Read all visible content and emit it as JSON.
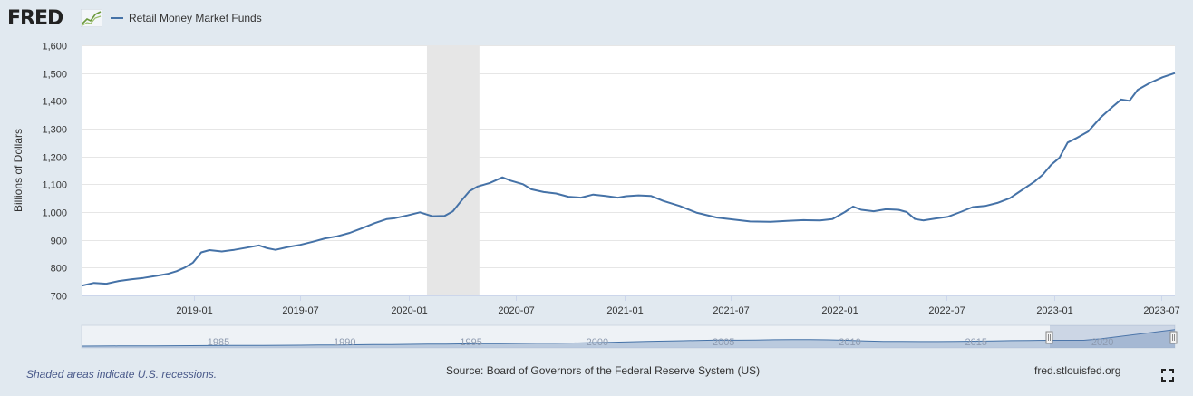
{
  "header": {
    "logo_text": "FRED",
    "legend_label": "Retail Money Market Funds"
  },
  "footer": {
    "recession_note": "Shaded areas indicate U.S. recessions.",
    "source": "Source: Board of Governors of the Federal Reserve System (US)",
    "url": "fred.stlouisfed.org"
  },
  "colors": {
    "series": "#4572a7",
    "recession_shade": "#e6e6e6",
    "background": "#e1e9f0",
    "navigator_fill": "#a8bcd6"
  },
  "icons": [
    "fred-graph-icon",
    "fullscreen-icon"
  ],
  "chart_data": {
    "type": "line",
    "title": "",
    "xlabel": "",
    "ylabel": "Billions of Dollars",
    "ylim": [
      700,
      1600
    ],
    "xlim": [
      "2018-06-25",
      "2023-07-24"
    ],
    "yticks": [
      "700",
      "800",
      "900",
      "1,000",
      "1,100",
      "1,200",
      "1,300",
      "1,400",
      "1,500",
      "1,600"
    ],
    "xticks": [
      {
        "date": "2019-01-01",
        "label": "2019-01"
      },
      {
        "date": "2019-07-01",
        "label": "2019-07"
      },
      {
        "date": "2020-01-01",
        "label": "2020-01"
      },
      {
        "date": "2020-07-01",
        "label": "2020-07"
      },
      {
        "date": "2021-01-01",
        "label": "2021-01"
      },
      {
        "date": "2021-07-01",
        "label": "2021-07"
      },
      {
        "date": "2022-01-01",
        "label": "2022-01"
      },
      {
        "date": "2022-07-01",
        "label": "2022-07"
      },
      {
        "date": "2023-01-01",
        "label": "2023-01"
      },
      {
        "date": "2023-07-01",
        "label": "2023-07"
      }
    ],
    "grid": true,
    "recessions": [
      {
        "start": "2020-02-01",
        "end": "2020-04-30"
      }
    ],
    "navigator": {
      "labels": [
        "1985",
        "1990",
        "1995",
        "2000",
        "2005",
        "2010",
        "2015",
        "2020"
      ]
    },
    "series": [
      {
        "name": "Retail Money Market Funds",
        "points": [
          [
            "2018-06-25",
            735
          ],
          [
            "2018-07-16",
            745
          ],
          [
            "2018-08-06",
            742
          ],
          [
            "2018-08-27",
            752
          ],
          [
            "2018-09-17",
            758
          ],
          [
            "2018-10-08",
            763
          ],
          [
            "2018-10-29",
            770
          ],
          [
            "2018-11-19",
            778
          ],
          [
            "2018-12-03",
            787
          ],
          [
            "2018-12-17",
            800
          ],
          [
            "2018-12-31",
            818
          ],
          [
            "2019-01-14",
            855
          ],
          [
            "2019-01-28",
            863
          ],
          [
            "2019-02-18",
            858
          ],
          [
            "2019-03-11",
            864
          ],
          [
            "2019-04-01",
            872
          ],
          [
            "2019-04-22",
            880
          ],
          [
            "2019-05-06",
            870
          ],
          [
            "2019-05-20",
            864
          ],
          [
            "2019-06-10",
            874
          ],
          [
            "2019-07-01",
            882
          ],
          [
            "2019-07-22",
            893
          ],
          [
            "2019-08-12",
            905
          ],
          [
            "2019-09-02",
            913
          ],
          [
            "2019-09-23",
            925
          ],
          [
            "2019-10-14",
            942
          ],
          [
            "2019-11-04",
            960
          ],
          [
            "2019-11-25",
            975
          ],
          [
            "2019-12-09",
            978
          ],
          [
            "2019-12-30",
            988
          ],
          [
            "2020-01-20",
            999
          ],
          [
            "2020-02-10",
            985
          ],
          [
            "2020-03-02",
            986
          ],
          [
            "2020-03-16",
            1003
          ],
          [
            "2020-03-30",
            1040
          ],
          [
            "2020-04-13",
            1075
          ],
          [
            "2020-04-27",
            1092
          ],
          [
            "2020-05-18",
            1105
          ],
          [
            "2020-06-08",
            1125
          ],
          [
            "2020-06-22",
            1113
          ],
          [
            "2020-07-13",
            1100
          ],
          [
            "2020-07-27",
            1082
          ],
          [
            "2020-08-17",
            1072
          ],
          [
            "2020-09-07",
            1067
          ],
          [
            "2020-09-28",
            1055
          ],
          [
            "2020-10-19",
            1052
          ],
          [
            "2020-11-09",
            1063
          ],
          [
            "2020-11-30",
            1058
          ],
          [
            "2020-12-21",
            1052
          ],
          [
            "2021-01-04",
            1057
          ],
          [
            "2021-01-25",
            1060
          ],
          [
            "2021-02-15",
            1058
          ],
          [
            "2021-03-08",
            1040
          ],
          [
            "2021-04-05",
            1022
          ],
          [
            "2021-05-03",
            998
          ],
          [
            "2021-06-07",
            980
          ],
          [
            "2021-07-05",
            973
          ],
          [
            "2021-08-02",
            966
          ],
          [
            "2021-09-06",
            965
          ],
          [
            "2021-10-04",
            968
          ],
          [
            "2021-11-01",
            971
          ],
          [
            "2021-11-29",
            970
          ],
          [
            "2021-12-20",
            975
          ],
          [
            "2022-01-10",
            1000
          ],
          [
            "2022-01-24",
            1020
          ],
          [
            "2022-02-07",
            1008
          ],
          [
            "2022-02-28",
            1003
          ],
          [
            "2022-03-21",
            1010
          ],
          [
            "2022-04-11",
            1008
          ],
          [
            "2022-04-25",
            1000
          ],
          [
            "2022-05-09",
            975
          ],
          [
            "2022-05-23",
            970
          ],
          [
            "2022-06-13",
            977
          ],
          [
            "2022-07-04",
            983
          ],
          [
            "2022-07-25",
            1000
          ],
          [
            "2022-08-15",
            1018
          ],
          [
            "2022-09-05",
            1022
          ],
          [
            "2022-09-26",
            1033
          ],
          [
            "2022-10-17",
            1050
          ],
          [
            "2022-11-07",
            1080
          ],
          [
            "2022-11-28",
            1110
          ],
          [
            "2022-12-12",
            1135
          ],
          [
            "2022-12-26",
            1170
          ],
          [
            "2023-01-09",
            1195
          ],
          [
            "2023-01-23",
            1250
          ],
          [
            "2023-02-06",
            1265
          ],
          [
            "2023-02-27",
            1290
          ],
          [
            "2023-03-20",
            1340
          ],
          [
            "2023-04-10",
            1380
          ],
          [
            "2023-04-24",
            1405
          ],
          [
            "2023-05-08",
            1400
          ],
          [
            "2023-05-22",
            1440
          ],
          [
            "2023-06-12",
            1465
          ],
          [
            "2023-07-03",
            1485
          ],
          [
            "2023-07-24",
            1500
          ]
        ]
      }
    ]
  }
}
